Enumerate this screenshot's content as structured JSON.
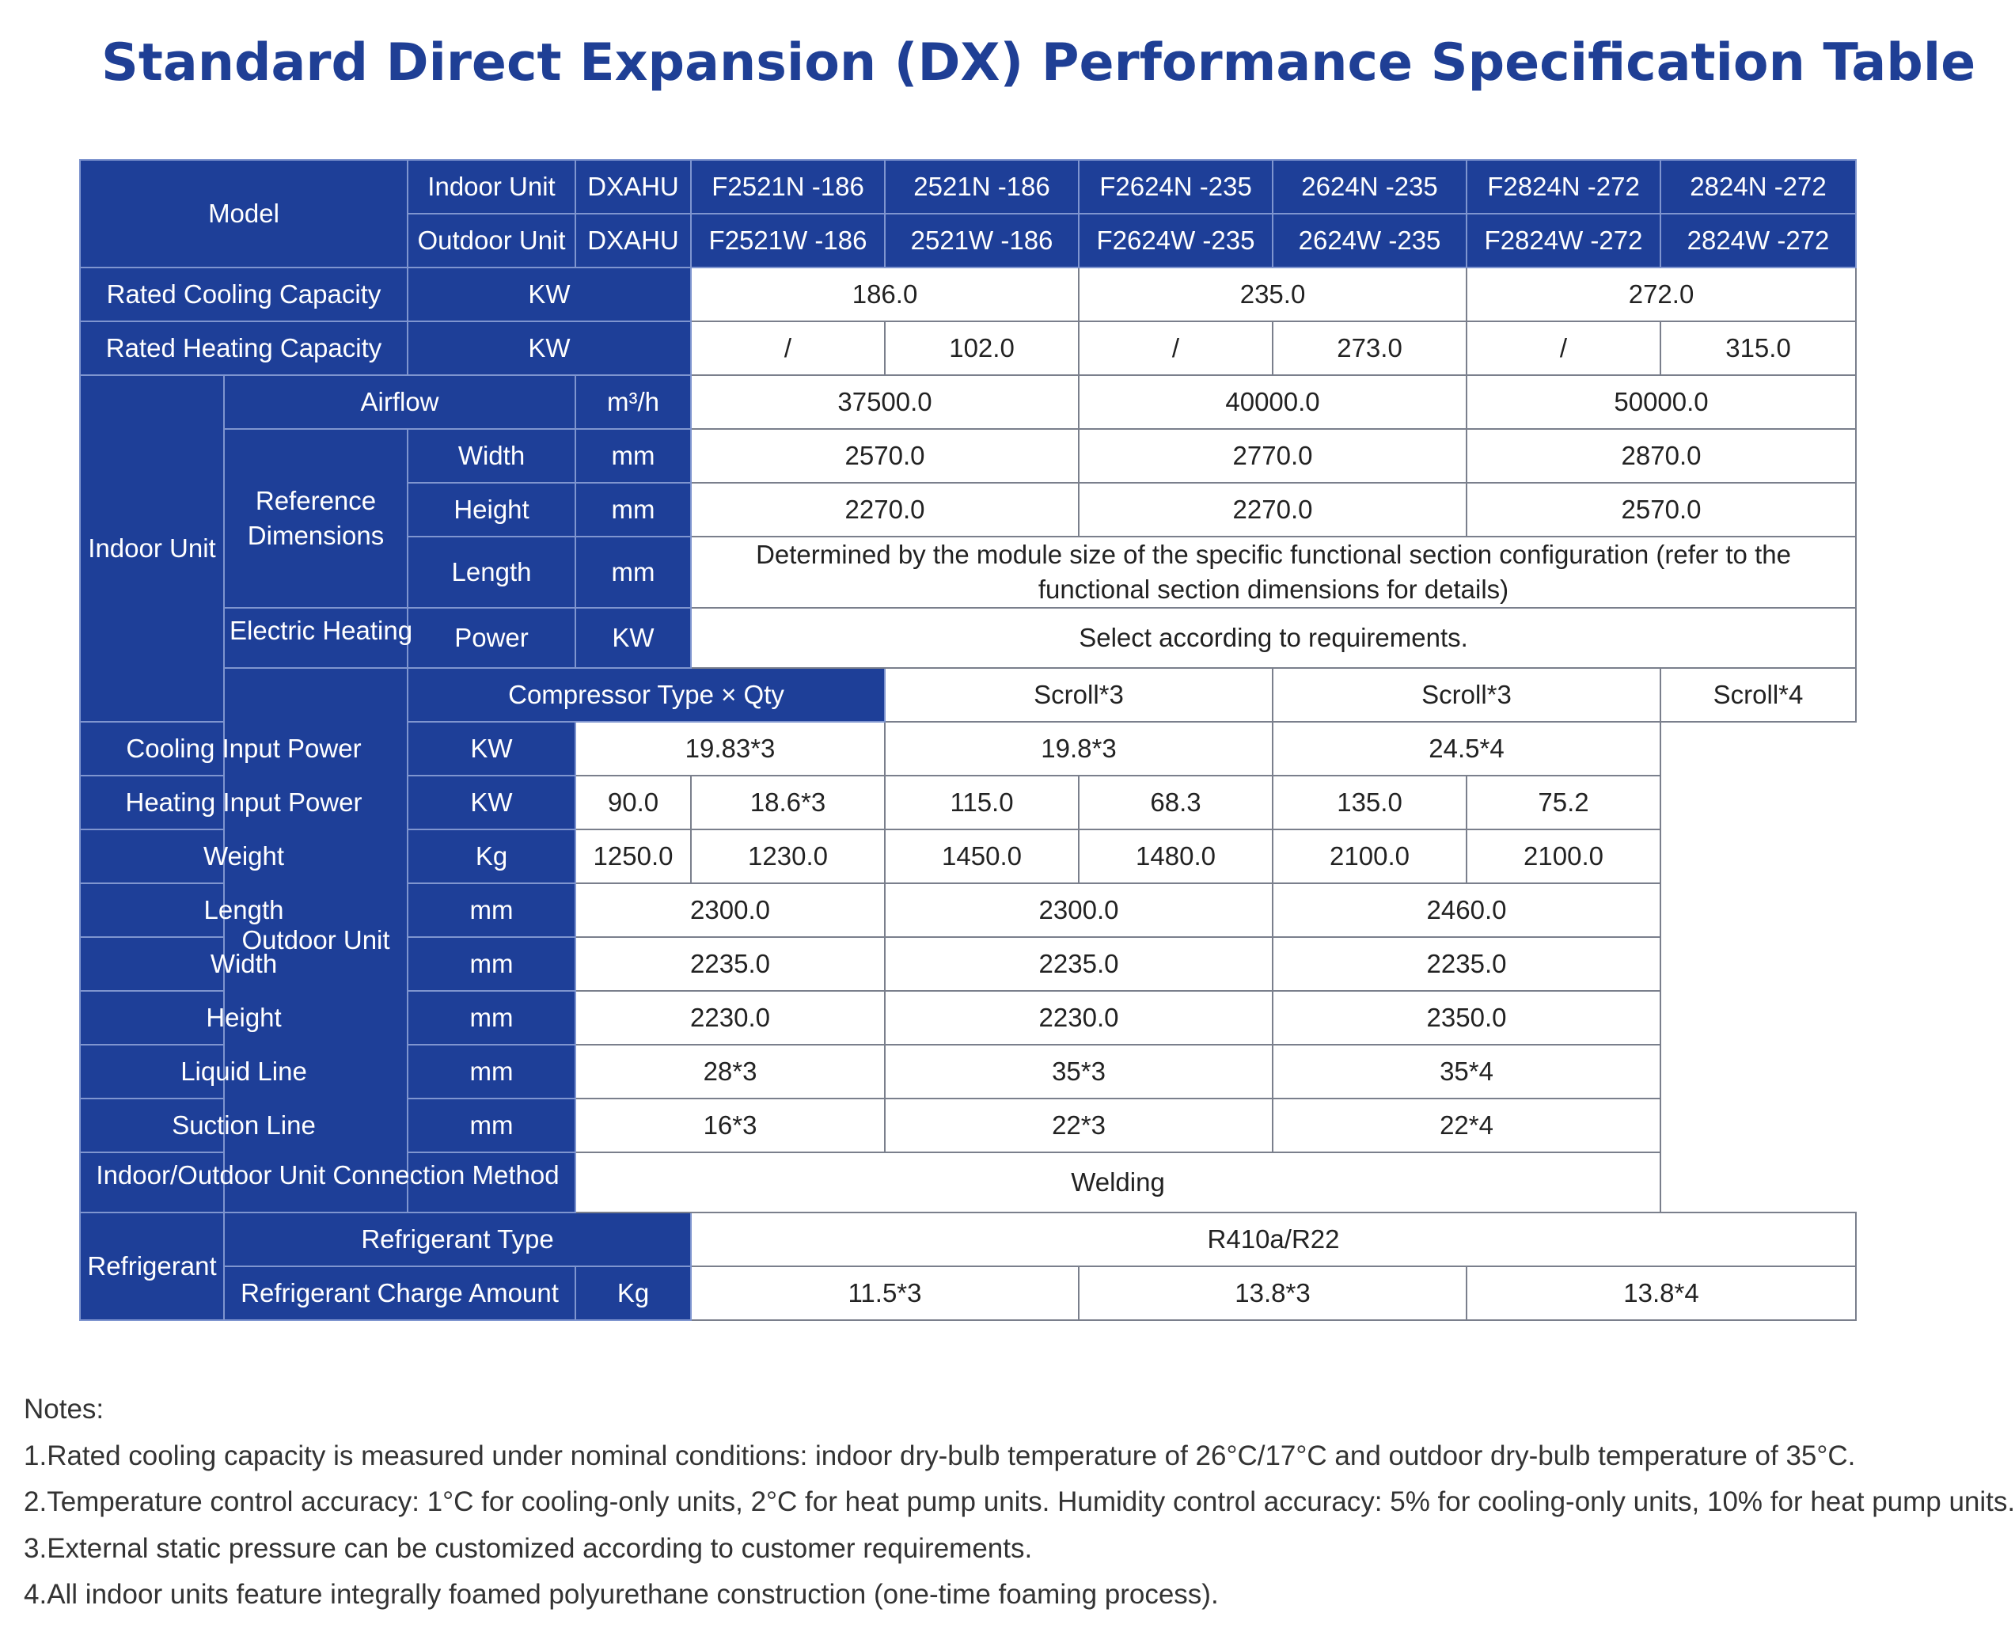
{
  "title": "Standard Direct Expansion (DX) Performance Specification Table",
  "table": {
    "model_label": "Model",
    "indoor_unit_label": "Indoor Unit",
    "outdoor_unit_label": "Outdoor Unit",
    "series_code": "DXAHU",
    "indoor_models": [
      "F2521N -186",
      "2521N -186",
      "F2624N -235",
      "2624N -235",
      "F2824N -272",
      "2824N -272"
    ],
    "outdoor_models": [
      "F2521W -186",
      "2521W -186",
      "F2624W -235",
      "2624W -235",
      "F2824W -272",
      "2824W -272"
    ],
    "rated_cooling": {
      "label": "Rated Cooling Capacity",
      "unit": "KW",
      "values": [
        "186.0",
        "235.0",
        "272.0"
      ]
    },
    "rated_heating": {
      "label": "Rated Heating Capacity",
      "unit": "KW",
      "values": [
        "/",
        "102.0",
        "/",
        "273.0",
        "/",
        "315.0"
      ]
    },
    "indoor": {
      "group_label": "Indoor Unit",
      "airflow": {
        "label": "Airflow",
        "unit": "m³/h",
        "values": [
          "37500.0",
          "40000.0",
          "50000.0"
        ]
      },
      "ref_dims_label": "Reference Dimensions",
      "width": {
        "label": "Width",
        "unit": "mm",
        "values": [
          "2570.0",
          "2770.0",
          "2870.0"
        ]
      },
      "height": {
        "label": "Height",
        "unit": "mm",
        "values": [
          "2270.0",
          "2270.0",
          "2570.0"
        ]
      },
      "length": {
        "label": "Length",
        "unit": "mm",
        "value": "Determined by the module size of the specific functional section configuration (refer to the functional section dimensions for details)"
      },
      "electric_heating_label": "Electric Heating",
      "power": {
        "label": "Power",
        "unit": "KW",
        "value": "Select according to requirements."
      }
    },
    "outdoor": {
      "group_label": "Outdoor Unit",
      "compressor": {
        "label": "Compressor Type × Qty",
        "values": [
          "Scroll*3",
          "Scroll*3",
          "Scroll*4"
        ]
      },
      "cooling_input": {
        "label": "Cooling Input Power",
        "unit": "KW",
        "values": [
          "19.83*3",
          "19.8*3",
          "24.5*4"
        ]
      },
      "heating_input": {
        "label": "Heating Input Power",
        "unit": "KW",
        "values": [
          "90.0",
          "18.6*3",
          "115.0",
          "68.3",
          "135.0",
          "75.2"
        ]
      },
      "weight": {
        "label": "Weight",
        "unit": "Kg",
        "values": [
          "1250.0",
          "1230.0",
          "1450.0",
          "1480.0",
          "2100.0",
          "2100.0"
        ]
      },
      "length": {
        "label": "Length",
        "unit": "mm",
        "values": [
          "2300.0",
          "2300.0",
          "2460.0"
        ]
      },
      "width": {
        "label": "Width",
        "unit": "mm",
        "values": [
          "2235.0",
          "2235.0",
          "2235.0"
        ]
      },
      "height": {
        "label": "Height",
        "unit": "mm",
        "values": [
          "2230.0",
          "2230.0",
          "2350.0"
        ]
      },
      "liquid_line": {
        "label": "Liquid Line",
        "unit": "mm",
        "values": [
          "28*3",
          "35*3",
          "35*4"
        ]
      },
      "suction_line": {
        "label": "Suction Line",
        "unit": "mm",
        "values": [
          "16*3",
          "22*3",
          "22*4"
        ]
      },
      "connection": {
        "label": "Indoor/Outdoor Unit Connection Method",
        "value": "Welding"
      }
    },
    "refrigerant": {
      "group_label": "Refrigerant",
      "type": {
        "label": "Refrigerant Type",
        "value": "R410a/R22"
      },
      "charge": {
        "label": "Refrigerant Charge Amount",
        "unit": "Kg",
        "values": [
          "11.5*3",
          "13.8*3",
          "13.8*4"
        ]
      }
    }
  },
  "notes": {
    "heading": "Notes:",
    "items": [
      "1.Rated cooling capacity is measured under nominal conditions: indoor dry-bulb temperature of 26°C/17°C and outdoor dry-bulb temperature of 35°C.",
      "2.Temperature control accuracy: 1°C for cooling-only units, 2°C for heat pump units. Humidity control accuracy: 5% for cooling-only units, 10% for heat pump units.",
      "3.External static pressure can be customized according to customer requirements.",
      "4.All indoor units feature integrally foamed polyurethane construction (one-time foaming process)."
    ]
  }
}
